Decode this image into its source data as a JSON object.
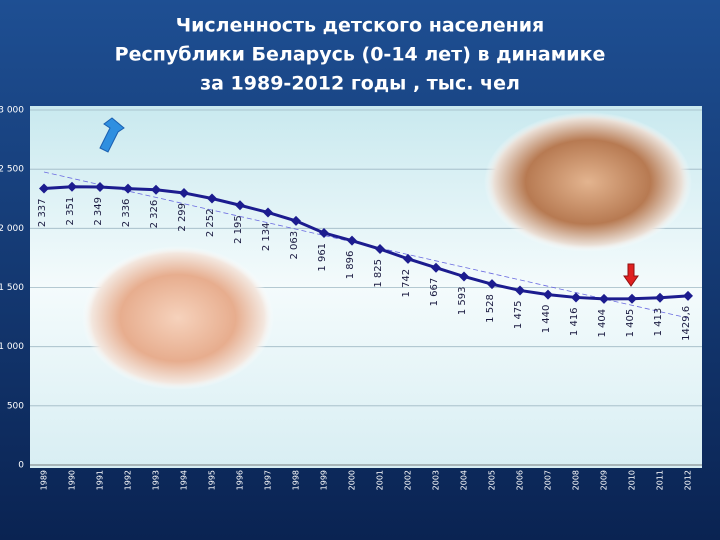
{
  "chart_data": {
    "type": "line",
    "title": [
      "Численность детского населения",
      "Республики Беларусь (0-14 лет) в динамике",
      "за 1989-2012 годы , тыс. чел"
    ],
    "categories": [
      "1989",
      "1990",
      "1991",
      "1992",
      "1993",
      "1994",
      "1995",
      "1996",
      "1997",
      "1998",
      "1999",
      "2000",
      "2001",
      "2002",
      "2003",
      "2004",
      "2005",
      "2006",
      "2007",
      "2008",
      "2009",
      "2010",
      "2011",
      "2012"
    ],
    "values": [
      2337,
      2351,
      2349,
      2336,
      2326,
      2299,
      2252,
      2195,
      2134,
      2063,
      1961,
      1896,
      1825,
      1742,
      1667,
      1593,
      1528,
      1475,
      1440,
      1416,
      1404,
      1405,
      1413,
      1429.6
    ],
    "value_labels": [
      "2 337",
      "2 351",
      "2 349",
      "2 336",
      "2 326",
      "2 299",
      "2 252",
      "2 195",
      "2 134",
      "2 063",
      "1 961",
      "1 896",
      "1 825",
      "1 742",
      "1 667",
      "1 593",
      "1 528",
      "1 475",
      "1 440",
      "1 416",
      "1 404",
      "1 405",
      "1 413",
      "1429,6"
    ],
    "color": "#1c1c8f",
    "ylim": [
      0,
      3000
    ],
    "yticks": [
      {
        "value": 0,
        "label": "0"
      },
      {
        "value": 500,
        "label": "500"
      },
      {
        "value": 1000,
        "label": "1 000"
      },
      {
        "value": 1500,
        "label": "1 500"
      },
      {
        "value": 2000,
        "label": "2 000"
      },
      {
        "value": 2500,
        "label": "2 500"
      },
      {
        "value": 3000,
        "label": "3 000"
      }
    ],
    "grid": true
  }
}
